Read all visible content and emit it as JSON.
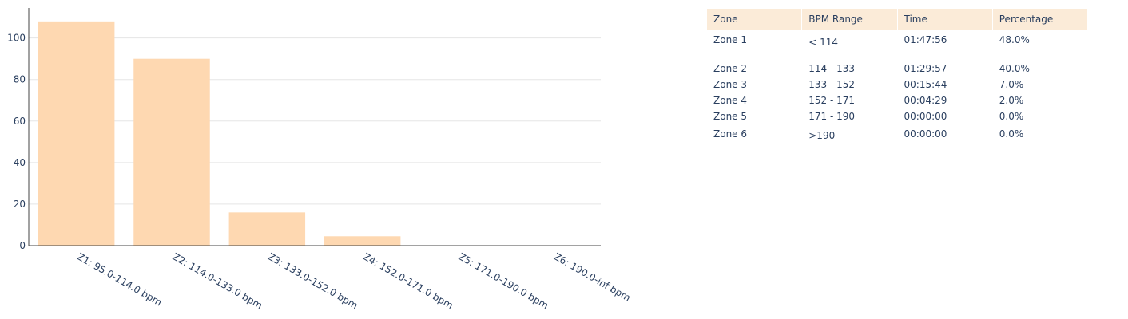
{
  "chart_data": {
    "type": "bar",
    "categories": [
      "Z1: 95.0-114.0 bpm",
      "Z2: 114.0-133.0 bpm",
      "Z3: 133.0-152.0 bpm",
      "Z4: 152.0-171.0 bpm",
      "Z5: 171.0-190.0 bpm",
      "Z6: 190.0-inf bpm"
    ],
    "values": [
      108,
      90,
      16,
      4.5,
      0,
      0
    ],
    "yticks": [
      0,
      20,
      40,
      60,
      80,
      100
    ],
    "ylim": [
      0,
      113.7
    ],
    "title": "",
    "xlabel": "",
    "ylabel": "",
    "grid": true,
    "bar_color": "#fed8b1",
    "grid_color": "#e5e5e5"
  },
  "table": {
    "headers": [
      "Zone",
      "BPM Range",
      "Time",
      "Percentage"
    ],
    "rows": [
      [
        "Zone 1",
        "< 114",
        "01:47:56",
        "48.0%"
      ],
      [
        "Zone 2",
        "114 - 133",
        "01:29:57",
        "40.0%"
      ],
      [
        "Zone 3",
        "133 - 152",
        "00:15:44",
        "7.0%"
      ],
      [
        "Zone 4",
        "152 - 171",
        "00:04:29",
        "2.0%"
      ],
      [
        "Zone 5",
        "171 - 190",
        "00:00:00",
        "0.0%"
      ],
      [
        "Zone 6",
        ">190",
        "00:00:00",
        "0.0%"
      ]
    ],
    "header_color": "#fbebd8"
  }
}
